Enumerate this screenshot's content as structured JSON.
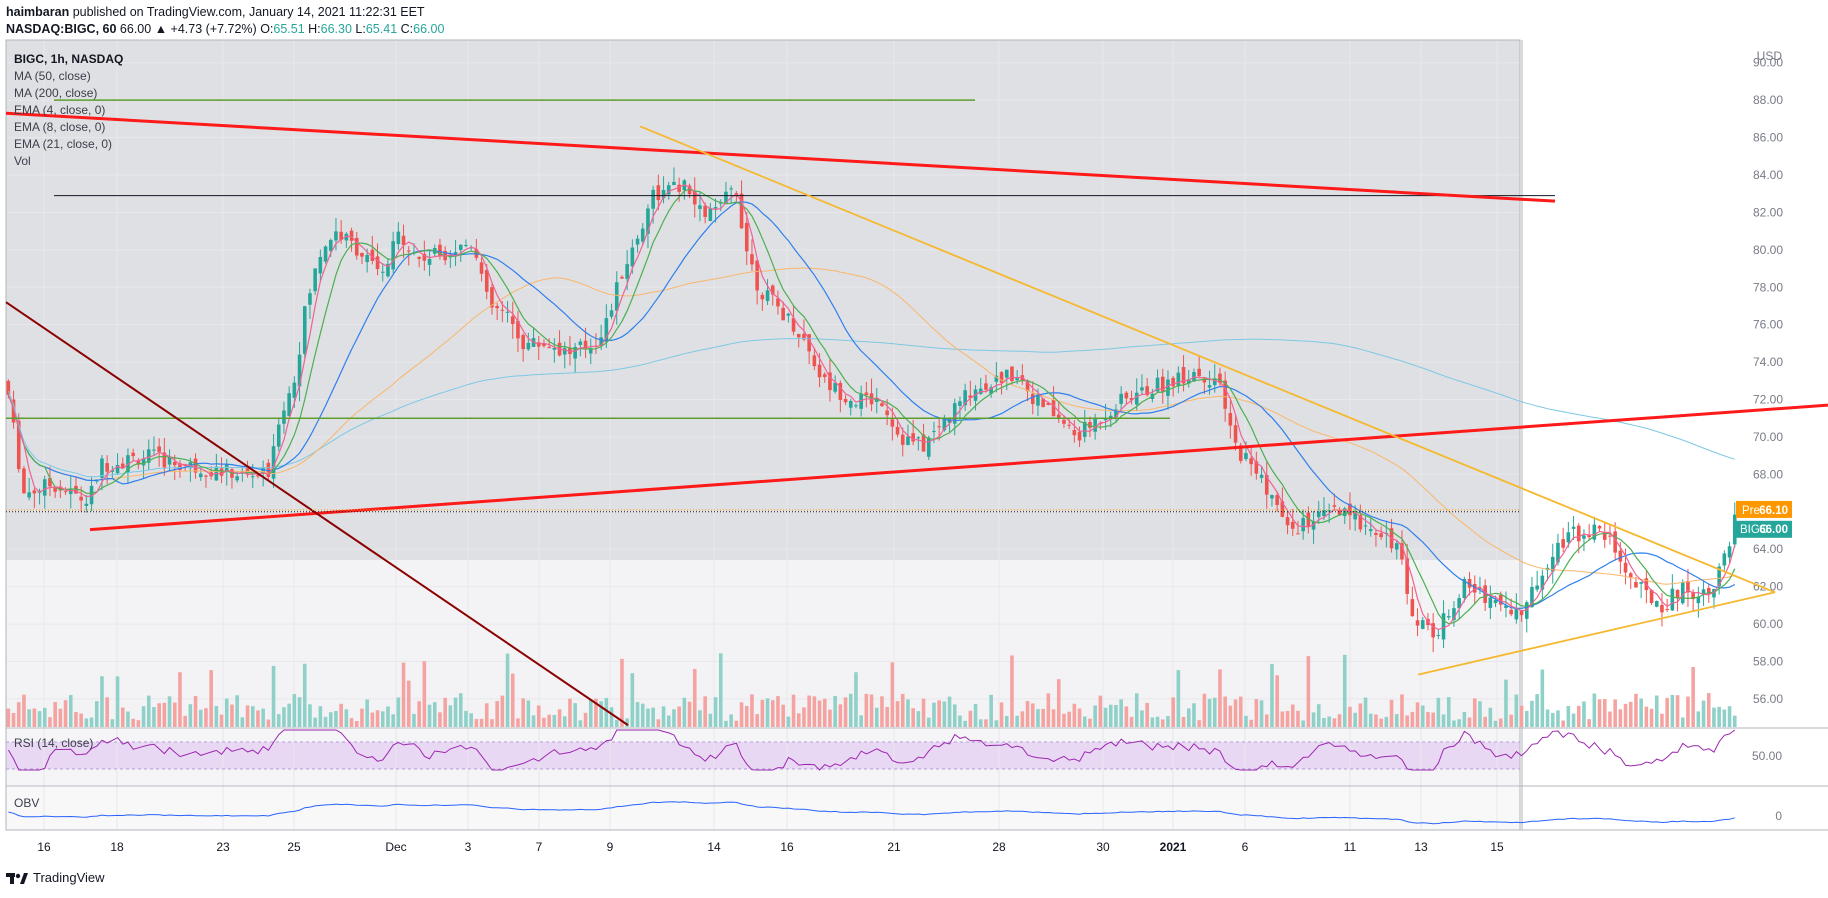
{
  "header": {
    "publisher": "haimbaran",
    "published_text": "published on TradingView.com, January 14, 2021 11:22:31 EET",
    "symbol_line_prefix": "NASDAQ:BIGC, 60",
    "close_value": "66.00",
    "change": "▲ +4.73 (+7.72%)",
    "o_label": "O:",
    "o_value": "65.51",
    "h_label": "H:",
    "h_value": "66.30",
    "l_label": "L:",
    "l_value": "65.41",
    "c_label": "C:",
    "c_value": "66.00"
  },
  "legend": {
    "symbol": "BIGC, 1h, NASDAQ",
    "items": [
      "MA (50, close)",
      "MA (200, close)",
      "EMA (4, close, 0)",
      "EMA (8, close, 0)",
      "EMA (21, close, 0)",
      "Vol"
    ]
  },
  "rsi_label": "RSI (14, close)",
  "obv_label": "OBV",
  "currency": "USD",
  "price_tags": {
    "pre_label": "Pre",
    "pre_value": "66.10",
    "symbol_label": "BIGC",
    "symbol_value": "66.00"
  },
  "rsi_axis_value": "50.00",
  "obv_axis_value": "0",
  "footer": "TradingView",
  "colors": {
    "up": "#26a69a",
    "down": "#ef5350",
    "red_trend": "#ff1a1a",
    "dark_red": "#8b0000",
    "yellow": "#f5b82e",
    "green_line": "#5e9e2c",
    "ma200": "#7ec8e3",
    "ma50": "#f9b66b",
    "ema4": "#f06292",
    "ema8": "#4caf50",
    "ema21": "#2f80ed",
    "rsi": "#9c27b0",
    "obv": "#2962ff"
  },
  "chart_data": {
    "type": "candlestick",
    "title": "BIGC, 1h, NASDAQ",
    "ylim": [
      54.5,
      91
    ],
    "y_ticks": [
      "90.00",
      "88.00",
      "86.00",
      "84.00",
      "82.00",
      "80.00",
      "78.00",
      "76.00",
      "74.00",
      "72.00",
      "70.00",
      "68.00",
      "66.00",
      "64.00",
      "62.00",
      "60.00",
      "58.00",
      "56.00"
    ],
    "x_tick_labels": [
      "16",
      "18",
      "23",
      "25",
      "Dec",
      "3",
      "7",
      "9",
      "14",
      "16",
      "21",
      "28",
      "30",
      "2021",
      "6",
      "11",
      "13",
      "15"
    ],
    "close_path": [
      [
        0,
        73
      ],
      [
        15,
        67
      ],
      [
        40,
        67.5
      ],
      [
        70,
        66.5
      ],
      [
        80,
        68.5
      ],
      [
        120,
        69
      ],
      [
        150,
        68.5
      ],
      [
        200,
        68
      ],
      [
        225,
        68
      ],
      [
        232,
        71
      ],
      [
        245,
        73
      ],
      [
        255,
        77
      ],
      [
        268,
        80
      ],
      [
        280,
        81
      ],
      [
        300,
        80
      ],
      [
        320,
        78.5
      ],
      [
        335,
        81
      ],
      [
        350,
        79.5
      ],
      [
        380,
        80
      ],
      [
        398,
        80.5
      ],
      [
        410,
        77
      ],
      [
        425,
        76.5
      ],
      [
        440,
        75
      ],
      [
        460,
        75
      ],
      [
        480,
        74.5
      ],
      [
        500,
        75
      ],
      [
        510,
        76
      ],
      [
        525,
        79
      ],
      [
        540,
        81
      ],
      [
        548,
        83
      ],
      [
        560,
        83
      ],
      [
        575,
        83.5
      ],
      [
        590,
        82
      ],
      [
        605,
        82
      ],
      [
        620,
        83.5
      ],
      [
        630,
        80
      ],
      [
        640,
        78
      ],
      [
        655,
        77
      ],
      [
        670,
        76
      ],
      [
        680,
        75
      ],
      [
        695,
        73
      ],
      [
        720,
        72
      ],
      [
        745,
        72
      ],
      [
        760,
        70
      ],
      [
        780,
        69.5
      ],
      [
        800,
        71
      ],
      [
        820,
        72.5
      ],
      [
        840,
        73
      ],
      [
        860,
        73.5
      ],
      [
        875,
        72
      ],
      [
        895,
        71
      ],
      [
        910,
        70
      ],
      [
        930,
        71
      ],
      [
        950,
        72
      ],
      [
        970,
        72.5
      ],
      [
        990,
        73
      ],
      [
        1010,
        73.5
      ],
      [
        1030,
        73
      ],
      [
        1045,
        69.5
      ],
      [
        1060,
        68.5
      ],
      [
        1075,
        67
      ],
      [
        1090,
        65
      ],
      [
        1110,
        65.5
      ],
      [
        1130,
        66
      ],
      [
        1150,
        65.5
      ],
      [
        1170,
        65
      ],
      [
        1185,
        64
      ],
      [
        1192,
        61
      ],
      [
        1205,
        60
      ],
      [
        1218,
        59.5
      ],
      [
        1228,
        61
      ],
      [
        1240,
        62
      ],
      [
        1260,
        61.5
      ],
      [
        1275,
        61
      ],
      [
        1290,
        60.5
      ],
      [
        1300,
        62
      ],
      [
        1315,
        64
      ],
      [
        1330,
        64.8
      ],
      [
        1350,
        65
      ],
      [
        1365,
        64.5
      ],
      [
        1380,
        62.5
      ],
      [
        1395,
        61.5
      ],
      [
        1410,
        61
      ],
      [
        1425,
        62
      ],
      [
        1440,
        61.5
      ],
      [
        1455,
        62.5
      ],
      [
        1465,
        64
      ],
      [
        1472,
        66
      ]
    ],
    "trend_lines": [
      {
        "name": "upper red trend",
        "from": [
          "start",
          87.3
        ],
        "to": [
          "12-11",
          82.6
        ]
      },
      {
        "name": "lower red trend",
        "from": [
          "17",
          65
        ],
        "to": [
          "end",
          71.7
        ]
      },
      {
        "name": "dark red trend",
        "from": [
          "start",
          77.2
        ],
        "to": [
          "7",
          54.5
        ]
      },
      {
        "name": "yellow descending",
        "from": [
          "7",
          86.6
        ],
        "to": [
          "end",
          61.7
        ]
      },
      {
        "name": "yellow ascending",
        "from": [
          "2021-3",
          57.2
        ],
        "to": [
          "end",
          61.7
        ]
      }
    ],
    "horizontal_levels": [
      88.0,
      82.9,
      71.0,
      66.1,
      66.0
    ]
  }
}
